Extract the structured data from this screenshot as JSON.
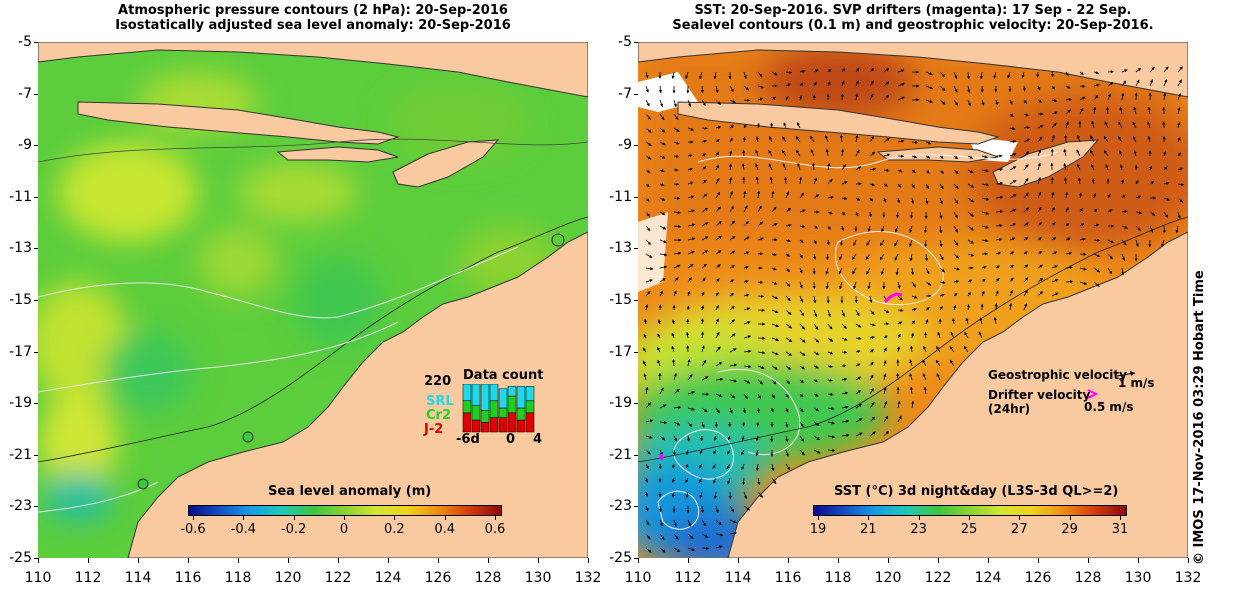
{
  "left_panel": {
    "title_line1": "Atmospheric pressure contours (2 hPa): 20-Sep-2016",
    "title_line2": "Isostatically adjusted sea level anomaly: 20-Sep-2016",
    "colorbar_title": "Sea level anomaly (m)",
    "colorbar_ticks": [
      "-0.6",
      "-0.4",
      "-0.2",
      "0",
      "0.2",
      "0.4",
      "0.6"
    ],
    "colors": [
      "#0a0a8c",
      "#1450c8",
      "#14a0e6",
      "#23c8b4",
      "#3cc83c",
      "#8cd232",
      "#d2e632",
      "#f0d21e",
      "#f08c14",
      "#d23c0a",
      "#8c0a0a"
    ],
    "data_count": {
      "title": "Data count",
      "max_label": "220",
      "series_labels": [
        "SRL",
        "Cr2",
        "J-2"
      ],
      "series_colors": [
        "#20d8e8",
        "#20d020",
        "#e00000"
      ],
      "x_ticks": [
        "-6d",
        "0",
        "4"
      ],
      "bars": [
        {
          "srl": 0.35,
          "cr2": 0.25,
          "j2": 0.4
        },
        {
          "srl": 0.45,
          "cr2": 0.3,
          "j2": 0.25
        },
        {
          "srl": 0.55,
          "cr2": 0.25,
          "j2": 0.2
        },
        {
          "srl": 0.35,
          "cr2": 0.35,
          "j2": 0.3
        },
        {
          "srl": 0.4,
          "cr2": 0.2,
          "j2": 0.3
        },
        {
          "srl": 0.2,
          "cr2": 0.35,
          "j2": 0.4
        },
        {
          "srl": 0.45,
          "cr2": 0.25,
          "j2": 0.25
        },
        {
          "srl": 0.3,
          "cr2": 0.25,
          "j2": 0.4
        }
      ]
    }
  },
  "right_panel": {
    "title_line1": "SST: 20-Sep-2016. SVP drifters (magenta): 17 Sep - 22 Sep.",
    "title_line2": "Sealevel contours (0.1 m) and geostrophic velocity: 20-Sep-2016.",
    "colorbar_title": "SST (°C) 3d night&day (L3S-3d QL>=2)",
    "colorbar_ticks": [
      "19",
      "21",
      "23",
      "25",
      "27",
      "29",
      "31"
    ],
    "colors": [
      "#0a0a8c",
      "#1450c8",
      "#14a0e6",
      "#23c8b4",
      "#3cc83c",
      "#8cd232",
      "#d2e632",
      "#f0d21e",
      "#f08c14",
      "#d23c0a",
      "#8c0a0a"
    ],
    "legend": {
      "geostrophic_label": "Geostrophic velocity",
      "geostrophic_scale": "1 m/s",
      "drifter_label": "Drifter velocity",
      "drifter_period": "(24hr)",
      "drifter_scale": "0.5 m/s"
    }
  },
  "axes": {
    "y_ticks": [
      "-5",
      "-7",
      "-9",
      "-11",
      "-13",
      "-15",
      "-17",
      "-19",
      "-21",
      "-23",
      "-25"
    ],
    "x_ticks": [
      "110",
      "112",
      "114",
      "116",
      "118",
      "120",
      "122",
      "124",
      "126",
      "128",
      "130",
      "132"
    ]
  },
  "credit": "© IMOS 17-Nov-2016 03:29 Hobart Time"
}
